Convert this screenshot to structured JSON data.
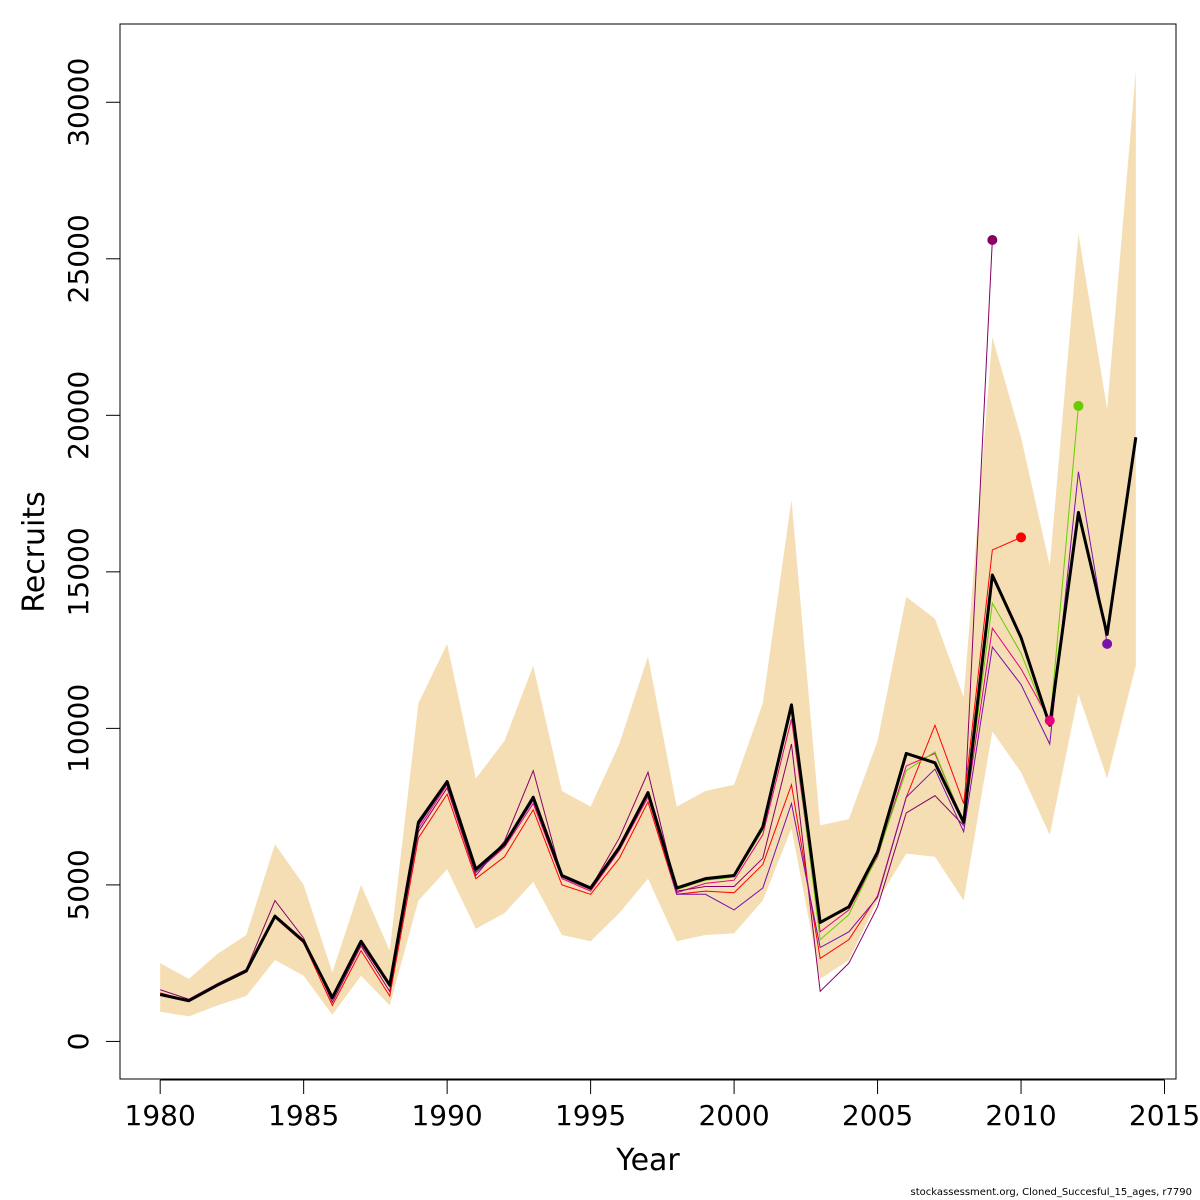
{
  "chart_data": {
    "type": "line",
    "xlabel": "Year",
    "ylabel": "Recruits",
    "xlim": [
      1978.6,
      2015.4
    ],
    "ylim": [
      -1200,
      32500
    ],
    "x_ticks": [
      1980,
      1985,
      1990,
      1995,
      2000,
      2005,
      2010,
      2015
    ],
    "y_ticks": [
      0,
      5000,
      10000,
      15000,
      20000,
      25000,
      30000
    ],
    "colors": {
      "band": "#f5deb3",
      "main": "#000000"
    },
    "x": [
      1980,
      1981,
      1982,
      1983,
      1984,
      1985,
      1986,
      1987,
      1988,
      1989,
      1990,
      1991,
      1992,
      1993,
      1994,
      1995,
      1996,
      1997,
      1998,
      1999,
      2000,
      2001,
      2002,
      2003,
      2004,
      2005,
      2006,
      2007,
      2008,
      2009,
      2010,
      2011,
      2012,
      2013,
      2014
    ],
    "band_upper": [
      2500,
      2000,
      2800,
      3400,
      6300,
      5000,
      2200,
      5000,
      2900,
      10800,
      12700,
      8400,
      9600,
      12000,
      8000,
      7500,
      9500,
      12300,
      7500,
      8000,
      8200,
      10800,
      17300,
      6900,
      7100,
      9600,
      14200,
      13500,
      11000,
      22500,
      19300,
      15200,
      25800,
      20200,
      31000
    ],
    "band_lower": [
      950,
      800,
      1150,
      1450,
      2600,
      2100,
      850,
      2100,
      1150,
      4500,
      5500,
      3600,
      4100,
      5100,
      3400,
      3200,
      4100,
      5200,
      3200,
      3400,
      3450,
      4500,
      6800,
      2000,
      2600,
      4500,
      6000,
      5900,
      4500,
      9900,
      8600,
      6600,
      11100,
      8400,
      12000
    ],
    "main": [
      1500,
      1300,
      1800,
      2250,
      4000,
      3200,
      1400,
      3200,
      1800,
      7000,
      8300,
      5500,
      6300,
      7800,
      5300,
      4900,
      6200,
      7950,
      4900,
      5200,
      5300,
      6850,
      10750,
      3800,
      4300,
      6050,
      9200,
      8900,
      7000,
      14900,
      12900,
      10100,
      16900,
      13000,
      19300
    ],
    "retro_series": [
      {
        "color": "#e6007e",
        "x": [
          1980,
          1981,
          1982,
          1983,
          1984,
          1985,
          1986,
          1987,
          1988,
          1989,
          1990,
          1991,
          1992,
          1993,
          1994,
          1995,
          1996,
          1997,
          1998,
          1999,
          2000,
          2001,
          2002,
          2003,
          2004,
          2005,
          2006,
          2007,
          2008,
          2009,
          2010,
          2011
        ],
        "y": [
          1500,
          1300,
          1800,
          2250,
          3950,
          3150,
          1350,
          3100,
          1750,
          6800,
          8200,
          5400,
          6200,
          7600,
          5200,
          4800,
          6100,
          7800,
          4750,
          5050,
          5150,
          6600,
          10300,
          3500,
          4200,
          5900,
          8800,
          9200,
          7000,
          13200,
          11900,
          10250
        ]
      },
      {
        "color": "#880066",
        "x": [
          1980,
          1981,
          1982,
          1983,
          1984,
          1985,
          1986,
          1987,
          1988,
          1989,
          1990,
          1991,
          1992,
          1993,
          1994,
          1995,
          1996,
          1997,
          1998,
          1999,
          2000,
          2001,
          2002,
          2003,
          2004,
          2005,
          2006,
          2007,
          2008,
          2009
        ],
        "y": [
          1650,
          1350,
          1850,
          2300,
          4500,
          3300,
          1250,
          3050,
          1600,
          6700,
          8100,
          5300,
          6400,
          8650,
          5250,
          4900,
          6500,
          8600,
          4800,
          4950,
          4950,
          5850,
          9500,
          1600,
          2500,
          4300,
          7300,
          7850,
          6900,
          25600
        ]
      },
      {
        "color": "#ff0000",
        "x": [
          1980,
          1981,
          1982,
          1983,
          1984,
          1985,
          1986,
          1987,
          1988,
          1989,
          1990,
          1991,
          1992,
          1993,
          1994,
          1995,
          1996,
          1997,
          1998,
          1999,
          2000,
          2001,
          2002,
          2003,
          2004,
          2005,
          2006,
          2007,
          2008,
          2009,
          2010
        ],
        "y": [
          1550,
          1300,
          1800,
          2250,
          4000,
          3150,
          1150,
          2900,
          1450,
          6500,
          7900,
          5200,
          5900,
          7400,
          5000,
          4700,
          5850,
          7650,
          4700,
          4800,
          4750,
          5650,
          8200,
          2650,
          3250,
          4650,
          7800,
          10100,
          7600,
          15700,
          16100
        ]
      },
      {
        "color": "#66cc00",
        "x": [
          1980,
          1981,
          1982,
          1983,
          1984,
          1985,
          1986,
          1987,
          1988,
          1989,
          1990,
          1991,
          1992,
          1993,
          1994,
          1995,
          1996,
          1997,
          1998,
          1999,
          2000,
          2001,
          2002,
          2003,
          2004,
          2005,
          2006,
          2007,
          2008,
          2009,
          2010,
          2011,
          2012
        ],
        "y": [
          1500,
          1300,
          1800,
          2250,
          4050,
          3200,
          1350,
          3150,
          1800,
          7000,
          8300,
          5450,
          6250,
          7750,
          5250,
          4850,
          6150,
          7900,
          4850,
          5150,
          5250,
          6750,
          10600,
          3250,
          4050,
          5950,
          8650,
          9250,
          6950,
          14000,
          12400,
          10100,
          20300
        ]
      },
      {
        "color": "#7711aa",
        "x": [
          1980,
          1981,
          1982,
          1983,
          1984,
          1985,
          1986,
          1987,
          1988,
          1989,
          1990,
          1991,
          1992,
          1993,
          1994,
          1995,
          1996,
          1997,
          1998,
          1999,
          2000,
          2001,
          2002,
          2003,
          2004,
          2005,
          2006,
          2007,
          2008,
          2009,
          2010,
          2011,
          2012,
          2013
        ],
        "y": [
          1500,
          1300,
          1800,
          2250,
          4000,
          3200,
          1350,
          3150,
          1800,
          6900,
          8250,
          5400,
          6250,
          7700,
          5250,
          4850,
          6150,
          7900,
          4700,
          4700,
          4200,
          4900,
          7600,
          3000,
          3500,
          4600,
          7800,
          8700,
          6700,
          12600,
          11400,
          9500,
          18200,
          12700
        ]
      }
    ],
    "end_points": [
      {
        "x": 2009,
        "y": 25600,
        "color": "#880066"
      },
      {
        "x": 2010,
        "y": 16100,
        "color": "#ff0000"
      },
      {
        "x": 2011,
        "y": 10250,
        "color": "#e6007e"
      },
      {
        "x": 2012,
        "y": 20300,
        "color": "#66cc00"
      },
      {
        "x": 2013,
        "y": 12700,
        "color": "#7711aa"
      }
    ]
  },
  "footer": {
    "note": "stockassessment.org, Cloned_Succesful_15_ages, r7790"
  }
}
